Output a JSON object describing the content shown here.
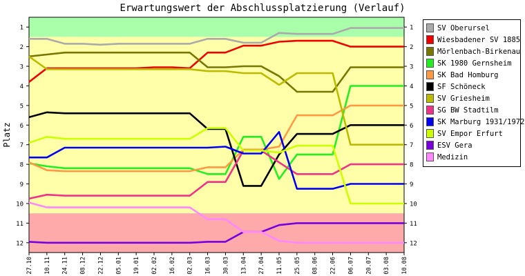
{
  "chart_data": {
    "type": "line",
    "title": "Erwartungswert der Abschlussplatzierung (Verlauf)",
    "ylabel": "Platz",
    "xlabel": "",
    "ylim": [
      1,
      12
    ],
    "y_inverted": true,
    "y_ticks": [
      1,
      2,
      3,
      4,
      5,
      6,
      7,
      8,
      9,
      10,
      11,
      12
    ],
    "legend_position": "right",
    "grid": false,
    "categories": [
      "27.10",
      "10.11",
      "24.11",
      "08.12",
      "22.12",
      "05.01",
      "19.01",
      "02.02",
      "16.02",
      "02.03",
      "16.03",
      "30.03",
      "13.04",
      "27.04",
      "11.05",
      "25.05",
      "08.06",
      "22.06",
      "06.07",
      "20.07",
      "03.08",
      "10.08"
    ],
    "bands": [
      {
        "from": 0.5,
        "to": 1.5,
        "color": "#aaffaa"
      },
      {
        "from": 1.5,
        "to": 10.5,
        "color": "#ffffaa"
      },
      {
        "from": 10.5,
        "to": 12.5,
        "color": "#ffaaaa"
      }
    ],
    "series": [
      {
        "name": "SV Oberursel",
        "color": "#aaaaaa",
        "values": [
          1.6,
          1.6,
          1.85,
          1.85,
          1.9,
          1.85,
          1.85,
          1.85,
          1.85,
          1.85,
          1.6,
          1.6,
          1.8,
          1.8,
          1.3,
          1.35,
          1.35,
          1.35,
          1.05,
          1.05,
          1.05,
          1.05
        ]
      },
      {
        "name": "Wiesbadener SV 1885",
        "color": "#ee0000",
        "values": [
          3.8,
          3.1,
          3.1,
          3.1,
          3.1,
          3.1,
          3.1,
          3.05,
          3.05,
          3.1,
          2.3,
          2.3,
          1.95,
          1.95,
          1.75,
          1.7,
          1.7,
          1.7,
          2.0,
          2.0,
          2.0,
          2.0
        ]
      },
      {
        "name": "Mörlenbach-Birkenau",
        "color": "#777700",
        "values": [
          2.5,
          2.4,
          2.3,
          2.3,
          2.3,
          2.3,
          2.3,
          2.3,
          2.3,
          2.3,
          3.05,
          3.05,
          3.0,
          3.0,
          3.5,
          4.3,
          4.3,
          4.3,
          3.05,
          3.05,
          3.05,
          3.05
        ]
      },
      {
        "name": "SK 1980 Gernsheim",
        "color": "#22ee22",
        "values": [
          7.95,
          8.1,
          8.2,
          8.2,
          8.2,
          8.2,
          8.2,
          8.2,
          8.2,
          8.2,
          8.5,
          8.5,
          6.6,
          6.6,
          8.75,
          7.5,
          7.5,
          7.5,
          4.0,
          4.0,
          4.0,
          4.0
        ]
      },
      {
        "name": "SK Bad Homburg",
        "color": "#ff9944",
        "values": [
          7.9,
          8.3,
          8.35,
          8.35,
          8.35,
          8.35,
          8.35,
          8.35,
          8.35,
          8.35,
          8.15,
          8.15,
          7.25,
          7.25,
          7.1,
          5.5,
          5.5,
          5.5,
          5.0,
          5.0,
          5.0,
          5.0
        ]
      },
      {
        "name": "SF Schöneck",
        "color": "#000000",
        "values": [
          5.6,
          5.35,
          5.4,
          5.4,
          5.4,
          5.4,
          5.4,
          5.4,
          5.4,
          5.4,
          6.2,
          6.2,
          9.1,
          9.1,
          7.5,
          6.45,
          6.45,
          6.45,
          6.0,
          6.0,
          6.0,
          6.0
        ]
      },
      {
        "name": "SV Griesheim",
        "color": "#bbbb00",
        "values": [
          2.5,
          3.15,
          3.15,
          3.15,
          3.15,
          3.15,
          3.15,
          3.15,
          3.15,
          3.15,
          3.25,
          3.25,
          3.35,
          3.35,
          3.95,
          3.35,
          3.35,
          3.35,
          7.0,
          7.0,
          7.0,
          7.0
        ]
      },
      {
        "name": "SG BW Stadtilm",
        "color": "#ee3388",
        "values": [
          9.75,
          9.55,
          9.6,
          9.6,
          9.6,
          9.6,
          9.6,
          9.6,
          9.6,
          9.6,
          8.9,
          8.9,
          7.3,
          7.3,
          7.9,
          8.5,
          8.5,
          8.5,
          8.0,
          8.0,
          8.0,
          8.0
        ]
      },
      {
        "name": "SK Marburg 1931/1972",
        "color": "#0000ee",
        "values": [
          7.65,
          7.65,
          7.15,
          7.15,
          7.15,
          7.15,
          7.15,
          7.15,
          7.15,
          7.15,
          7.15,
          7.1,
          7.45,
          7.45,
          6.35,
          9.25,
          9.25,
          9.25,
          9.0,
          9.0,
          9.0,
          9.0
        ]
      },
      {
        "name": "SV Empor Erfurt",
        "color": "#ccff00",
        "values": [
          6.9,
          6.6,
          6.7,
          6.7,
          6.7,
          6.7,
          6.7,
          6.7,
          6.7,
          6.7,
          6.15,
          6.15,
          7.3,
          7.3,
          7.4,
          7.05,
          7.05,
          7.05,
          10.0,
          10.0,
          10.0,
          10.0
        ]
      },
      {
        "name": "ESV Gera",
        "color": "#7700dd",
        "values": [
          11.95,
          12.0,
          12.0,
          12.0,
          12.0,
          12.0,
          12.0,
          12.0,
          12.0,
          12.0,
          11.95,
          11.95,
          11.45,
          11.45,
          11.1,
          11.0,
          11.0,
          11.0,
          11.0,
          11.0,
          11.0,
          11.0
        ]
      },
      {
        "name": "Medizin",
        "color": "#ff88ff",
        "values": [
          9.95,
          10.2,
          10.2,
          10.2,
          10.2,
          10.2,
          10.2,
          10.2,
          10.2,
          10.2,
          10.8,
          10.8,
          11.45,
          11.45,
          11.9,
          12.0,
          12.0,
          12.0,
          12.0,
          12.0,
          12.0,
          12.0
        ]
      }
    ]
  }
}
